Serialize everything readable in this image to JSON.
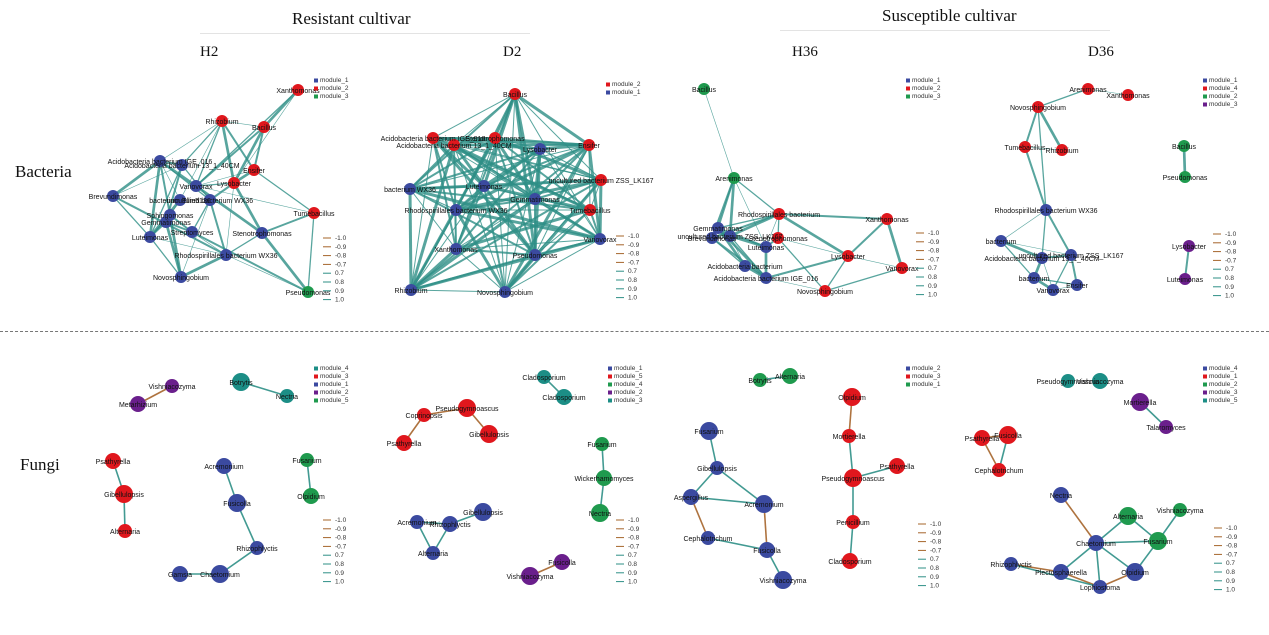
{
  "headers": {
    "resistant": "Resistant cultivar",
    "susceptible": "Susceptible cultivar"
  },
  "columns": [
    "H2",
    "D2",
    "H36",
    "D36"
  ],
  "rows": [
    "Bacteria",
    "Fungi"
  ],
  "colors": {
    "module_1": "#3b4aa0",
    "module_2": "#e0171d",
    "module_3": "#1f9a4e",
    "module_4": "#d8161d",
    "module_5": "#1c8e86",
    "purple": "#6a1f8c",
    "pos_edge": "#2e8f86",
    "neg_edge": "#a5642a"
  },
  "edge_scale": [
    "-1.0",
    "-0.9",
    "-0.8",
    "-0.7",
    "0.7",
    "0.8",
    "0.9",
    "1.0"
  ],
  "panels": [
    {
      "id": "bac_h2",
      "legend": [
        [
          "module_1",
          "#3b4aa0"
        ],
        [
          "module_2",
          "#e0171d"
        ],
        [
          "module_3",
          "#1f9a4e"
        ]
      ],
      "nodes": [
        [
          "Xanthomonas",
          "#e0171d"
        ],
        [
          "Rhizobium",
          "#e0171d"
        ],
        [
          "Bacillus",
          "#e0171d"
        ],
        [
          "Acidobacteria bacterium IGE_016",
          "#3b4aa0"
        ],
        [
          "Acidobacteria bacterium 13_1_40CM",
          "#3b4aa0"
        ],
        [
          "Ensifer",
          "#e0171d"
        ],
        [
          "Lysobacter",
          "#e0171d"
        ],
        [
          "Brevundimonas",
          "#3b4aa0"
        ],
        [
          "bacterium Ellin5136",
          "#3b4aa0"
        ],
        [
          "uncultured bacterium WX36",
          "#3b4aa0"
        ],
        [
          "Variovorax",
          "#3b4aa0"
        ],
        [
          "Sphingomonas",
          "#3b4aa0"
        ],
        [
          "Luteimonas",
          "#3b4aa0"
        ],
        [
          "Gemmatimonas",
          "#3b4aa0"
        ],
        [
          "Streptomyces",
          "#3b4aa0"
        ],
        [
          "Stenotrophomonas",
          "#3b4aa0"
        ],
        [
          "Rhodospirillales bacterium WX36",
          "#3b4aa0"
        ],
        [
          "Tumebacillus",
          "#e0171d"
        ],
        [
          "Pseudomonas",
          "#1f9a4e"
        ],
        [
          "Novosphingobium",
          "#3b4aa0"
        ]
      ]
    },
    {
      "id": "bac_d2",
      "legend": [
        [
          "module_2",
          "#e0171d"
        ],
        [
          "module_1",
          "#3b4aa0"
        ]
      ],
      "nodes": [
        [
          "Bacillus",
          "#e0171d"
        ],
        [
          "Acidobacteria bacterium IGE_016",
          "#e0171d"
        ],
        [
          "Stenotrophomonas",
          "#e0171d"
        ],
        [
          "Ensifer",
          "#e0171d"
        ],
        [
          "Acidobacteria bacterium 13_1_40CM",
          "#e0171d"
        ],
        [
          "Lysobacter",
          "#3b4aa0"
        ],
        [
          "bacterium WX36",
          "#3b4aa0"
        ],
        [
          "Luteimonas",
          "#3b4aa0"
        ],
        [
          "uncultured bacterium ZSS_LK167",
          "#e0171d"
        ],
        [
          "Rhodospirillales bacterium WX36",
          "#3b4aa0"
        ],
        [
          "Tumebacillus",
          "#e0171d"
        ],
        [
          "Gemmatimonas",
          "#3b4aa0"
        ],
        [
          "Variovorax",
          "#3b4aa0"
        ],
        [
          "Xanthomonas",
          "#3b4aa0"
        ],
        [
          "Pseudomonas",
          "#3b4aa0"
        ],
        [
          "Rhizobium",
          "#3b4aa0"
        ],
        [
          "Novosphingobium",
          "#3b4aa0"
        ]
      ]
    },
    {
      "id": "bac_h36",
      "legend": [
        [
          "module_1",
          "#3b4aa0"
        ],
        [
          "module_2",
          "#e0171d"
        ],
        [
          "module_3",
          "#1f9a4e"
        ]
      ],
      "nodes": [
        [
          "Bacillus",
          "#1f9a4e"
        ],
        [
          "Arenimonas",
          "#1f9a4e"
        ],
        [
          "Rhodospirillales bacterium",
          "#e0171d"
        ],
        [
          "Gemmatimonas",
          "#3b4aa0"
        ],
        [
          "Brevundimonas",
          "#3b4aa0"
        ],
        [
          "uncultured bacterium ZSS_LK167",
          "#3b4aa0"
        ],
        [
          "Luteimonas",
          "#3b4aa0"
        ],
        [
          "Stenotrophomonas",
          "#e0171d"
        ],
        [
          "Xanthomonas",
          "#e0171d"
        ],
        [
          "Lysobacter",
          "#e0171d"
        ],
        [
          "Variovorax",
          "#e0171d"
        ],
        [
          "Acidobacteria bacterium",
          "#3b4aa0"
        ],
        [
          "Acidobacteria bacterium IGE_016",
          "#3b4aa0"
        ],
        [
          "Novosphingobium",
          "#e0171d"
        ]
      ]
    },
    {
      "id": "bac_d36",
      "legend": [
        [
          "module_1",
          "#3b4aa0"
        ],
        [
          "module_4",
          "#e0171d"
        ],
        [
          "module_2",
          "#1f9a4e"
        ],
        [
          "module_3",
          "#6a1f8c"
        ]
      ],
      "nodes": [
        [
          "Arenimonas",
          "#e0171d"
        ],
        [
          "Xanthomonas",
          "#e0171d"
        ],
        [
          "Novosphingobium",
          "#e0171d"
        ],
        [
          "Tumebacillus",
          "#e0171d"
        ],
        [
          "Rhizobium",
          "#e0171d"
        ],
        [
          "Bacillus",
          "#1f9a4e"
        ],
        [
          "Pseudomonas",
          "#1f9a4e"
        ],
        [
          "Rhodospirillales bacterium WX36",
          "#3b4aa0"
        ],
        [
          "bacterium",
          "#3b4aa0"
        ],
        [
          "Acidobacteria bacterium 13_1_40CM",
          "#3b4aa0"
        ],
        [
          "uncultured bacterium ZSS_LK167",
          "#3b4aa0"
        ],
        [
          "bacterium",
          "#3b4aa0"
        ],
        [
          "Variovorax",
          "#3b4aa0"
        ],
        [
          "Ensifer",
          "#3b4aa0"
        ],
        [
          "Lysobacter",
          "#6a1f8c"
        ],
        [
          "Luteimonas",
          "#6a1f8c"
        ]
      ]
    },
    {
      "id": "fun_h2",
      "legend": [
        [
          "module_4",
          "#1c8e86"
        ],
        [
          "module_3",
          "#e0171d"
        ],
        [
          "module_1",
          "#3b4aa0"
        ],
        [
          "module_2",
          "#6a1f8c"
        ],
        [
          "module_5",
          "#1f9a4e"
        ]
      ],
      "nodes": [
        [
          "Vishniacozyma",
          "#6a1f8c"
        ],
        [
          "Metarhizium",
          "#6a1f8c"
        ],
        [
          "Botrytis",
          "#1c8e86"
        ],
        [
          "Nectria",
          "#1c8e86"
        ],
        [
          "Psathyrella",
          "#e0171d"
        ],
        [
          "Gibellulopsis",
          "#e0171d"
        ],
        [
          "Alternaria",
          "#e0171d"
        ],
        [
          "Acremonium",
          "#3b4aa0"
        ],
        [
          "Fusicolla",
          "#3b4aa0"
        ],
        [
          "Rhizophlyctis",
          "#3b4aa0"
        ],
        [
          "Gamsia",
          "#3b4aa0"
        ],
        [
          "Chaetomium",
          "#3b4aa0"
        ],
        [
          "Fusarium",
          "#1f9a4e"
        ],
        [
          "Olpidium",
          "#1f9a4e"
        ]
      ]
    },
    {
      "id": "fun_d2",
      "legend": [
        [
          "module_1",
          "#3b4aa0"
        ],
        [
          "module_5",
          "#e0171d"
        ],
        [
          "module_4",
          "#1f9a4e"
        ],
        [
          "module_2",
          "#6a1f8c"
        ],
        [
          "module_3",
          "#1c8e86"
        ]
      ],
      "nodes": [
        [
          "Cladosporium",
          "#1c8e86"
        ],
        [
          "Cladosporium",
          "#1c8e86"
        ],
        [
          "Pseudogymnoascus",
          "#e0171d"
        ],
        [
          "Coprinopsis",
          "#e0171d"
        ],
        [
          "Psathyrella",
          "#e0171d"
        ],
        [
          "Gibellulopsis",
          "#e0171d"
        ],
        [
          "Fusarium",
          "#1f9a4e"
        ],
        [
          "Wickerhamomyces",
          "#1f9a4e"
        ],
        [
          "Nectria",
          "#1f9a4e"
        ],
        [
          "Acremonium",
          "#3b4aa0"
        ],
        [
          "Rhizophlyctis",
          "#3b4aa0"
        ],
        [
          "Gibellulopsis",
          "#3b4aa0"
        ],
        [
          "Alternaria",
          "#3b4aa0"
        ],
        [
          "Fusicolla",
          "#6a1f8c"
        ],
        [
          "Vishniacozyma",
          "#6a1f8c"
        ]
      ]
    },
    {
      "id": "fun_h36",
      "legend": [
        [
          "module_2",
          "#3b4aa0"
        ],
        [
          "module_3",
          "#e0171d"
        ],
        [
          "module_1",
          "#1f9a4e"
        ]
      ],
      "nodes": [
        [
          "Botrytis",
          "#1f9a4e"
        ],
        [
          "Alternaria",
          "#1f9a4e"
        ],
        [
          "Olpidium",
          "#e0171d"
        ],
        [
          "Mortierella",
          "#e0171d"
        ],
        [
          "Psathyrella",
          "#e0171d"
        ],
        [
          "Pseudogymnoascus",
          "#e0171d"
        ],
        [
          "Penicillium",
          "#e0171d"
        ],
        [
          "Cladosporium",
          "#e0171d"
        ],
        [
          "Fusarium",
          "#3b4aa0"
        ],
        [
          "Gibellulopsis",
          "#3b4aa0"
        ],
        [
          "Aspergillus",
          "#3b4aa0"
        ],
        [
          "Acremonium",
          "#3b4aa0"
        ],
        [
          "Cephalotrichum",
          "#3b4aa0"
        ],
        [
          "Fusicolla",
          "#3b4aa0"
        ],
        [
          "Vishniacozyma",
          "#3b4aa0"
        ]
      ]
    },
    {
      "id": "fun_d36",
      "legend": [
        [
          "module_4",
          "#3b4aa0"
        ],
        [
          "module_1",
          "#e0171d"
        ],
        [
          "module_2",
          "#1f9a4e"
        ],
        [
          "module_3",
          "#6a1f8c"
        ],
        [
          "module_5",
          "#1c8e86"
        ]
      ],
      "nodes": [
        [
          "Pseudogymnoascus",
          "#1c8e86"
        ],
        [
          "Vishniacozyma",
          "#1c8e86"
        ],
        [
          "Mortierella",
          "#6a1f8c"
        ],
        [
          "Talaromyces",
          "#6a1f8c"
        ],
        [
          "Psathyrella",
          "#e0171d"
        ],
        [
          "Fusicolla",
          "#e0171d"
        ],
        [
          "Cephalotrichum",
          "#e0171d"
        ],
        [
          "Nectria",
          "#3b4aa0"
        ],
        [
          "Alternaria",
          "#1f9a4e"
        ],
        [
          "Vishniacozyma",
          "#1f9a4e"
        ],
        [
          "Chaetomium",
          "#3b4aa0"
        ],
        [
          "Fusarium",
          "#1f9a4e"
        ],
        [
          "Rhizophlyctis",
          "#3b4aa0"
        ],
        [
          "Plectosphaerella",
          "#3b4aa0"
        ],
        [
          "Olpidium",
          "#3b4aa0"
        ],
        [
          "Lophiostoma",
          "#3b4aa0"
        ]
      ]
    }
  ]
}
